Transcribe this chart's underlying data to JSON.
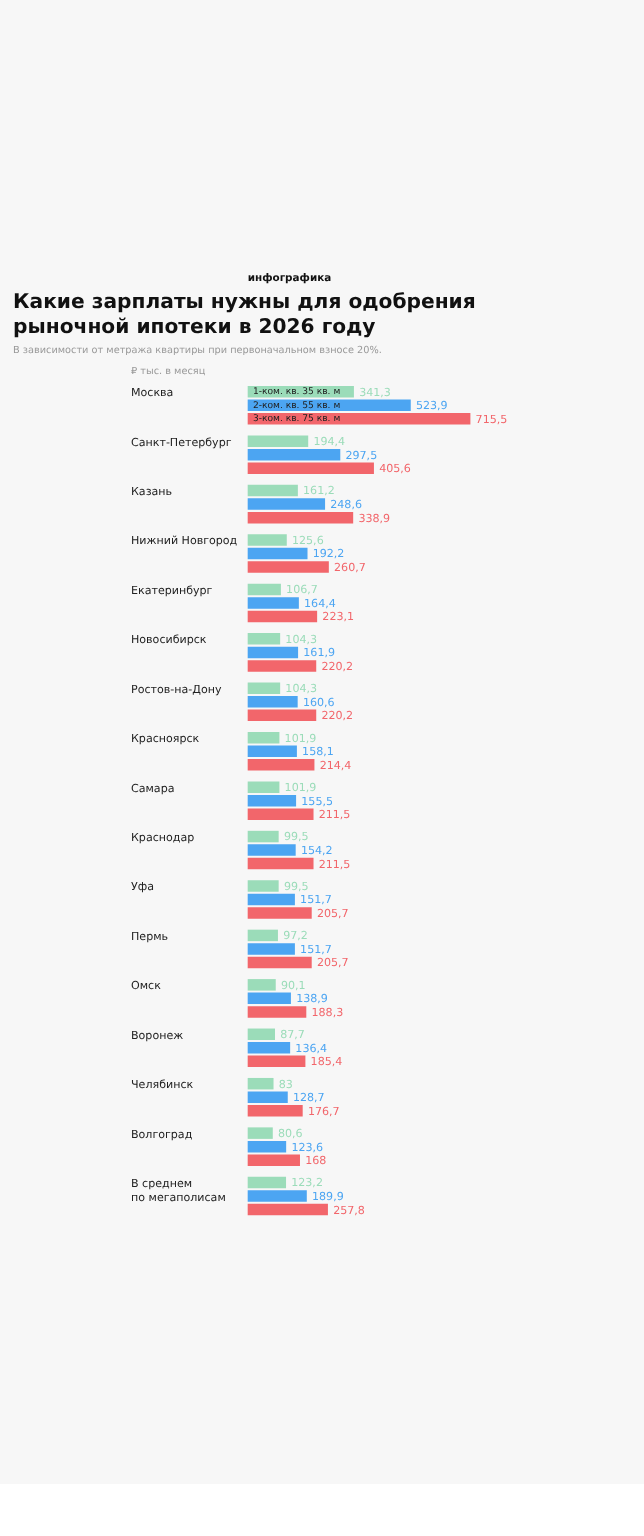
{
  "chart_data": {
    "type": "bar",
    "orientation": "horizontal",
    "title": "Какие зарплаты нужны для одобрения рыночной ипотеки в 2026 году",
    "subtitle": "В зависимости от метража квартиры при первоначальном взносе 20%.",
    "xlabel": "₽ тыс. в месяц",
    "annotations": [
      "инфографика"
    ],
    "categories": [
      "Москва",
      "Санкт-Петербург",
      "Казань",
      "Нижний Новгород",
      "Екатеринбург",
      "Новосибирск",
      "Ростов-на-Дону",
      "Красноярск",
      "Самара",
      "Краснодар",
      "Уфа",
      "Пермь",
      "Омск",
      "Воронеж",
      "Челябинск",
      "Волгоград",
      "В среднем\nпо мегаполисам"
    ],
    "series": [
      {
        "name": "1-ком. кв. 35 кв. м",
        "color": "#9bdcb9",
        "values": [
          341.3,
          194.4,
          161.2,
          125.6,
          106.7,
          104.3,
          104.3,
          101.9,
          101.9,
          99.5,
          99.5,
          97.2,
          90.1,
          87.7,
          83,
          80.6,
          123.2
        ],
        "value_labels": [
          "341,3",
          "194,4",
          "161,2",
          "125,6",
          "106,7",
          "104,3",
          "104,3",
          "101,9",
          "101,9",
          "99,5",
          "99,5",
          "97,2",
          "90,1",
          "87,7",
          "83",
          "80,6",
          "123,2"
        ]
      },
      {
        "name": "2-ком. кв. 55 кв. м",
        "color": "#4ca5f2",
        "values": [
          523.9,
          297.5,
          248.6,
          192.2,
          164.4,
          161.9,
          160.6,
          158.1,
          155.5,
          154.2,
          151.7,
          151.7,
          138.9,
          136.4,
          128.7,
          123.6,
          189.9
        ],
        "value_labels": [
          "523,9",
          "297,5",
          "248,6",
          "192,2",
          "164,4",
          "161,9",
          "160,6",
          "158,1",
          "155,5",
          "154,2",
          "151,7",
          "151,7",
          "138,9",
          "136,4",
          "128,7",
          "123,6",
          "189,9"
        ]
      },
      {
        "name": "3-ком. кв. 75 кв. м",
        "color": "#f2666b",
        "values": [
          715.5,
          405.6,
          338.9,
          260.7,
          223.1,
          220.2,
          220.2,
          214.4,
          211.5,
          211.5,
          205.7,
          205.7,
          188.3,
          185.4,
          176.7,
          168,
          257.8
        ],
        "value_labels": [
          "715,5",
          "405,6",
          "338,9",
          "260,7",
          "223,1",
          "220,2",
          "220,2",
          "214,4",
          "211,5",
          "211,5",
          "205,7",
          "205,7",
          "188,3",
          "185,4",
          "176,7",
          "168",
          "257,8"
        ]
      }
    ],
    "legend": false,
    "grid": false
  }
}
